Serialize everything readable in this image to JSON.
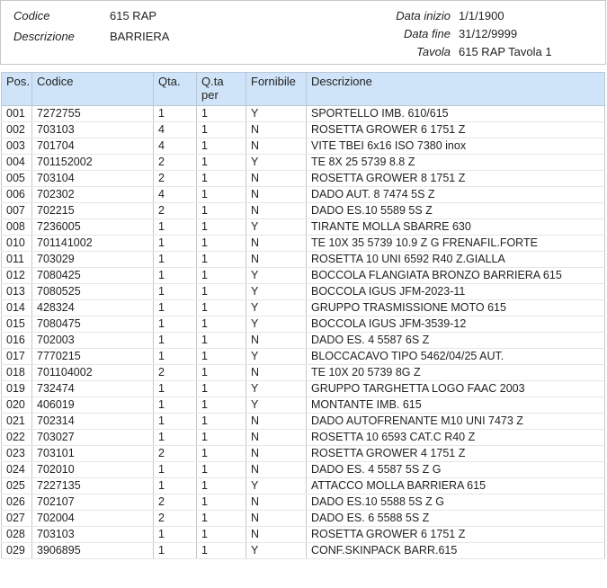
{
  "header": {
    "codice_label": "Codice",
    "codice_value": "615 RAP",
    "descrizione_label": "Descrizione",
    "descrizione_value": "BARRIERA",
    "data_inizio_label": "Data inizio",
    "data_inizio_value": "1/1/1900",
    "data_fine_label": "Data fine",
    "data_fine_value": "31/12/9999",
    "tavola_label": "Tavola",
    "tavola_value": "615 RAP Tavola 1"
  },
  "table": {
    "columns": [
      "Pos.",
      "Codice",
      "Qta.",
      "Q.ta per",
      "Fornibile",
      "Descrizione"
    ],
    "rows": [
      [
        "001",
        "7272755",
        "1",
        "1",
        "Y",
        "SPORTELLO IMB. 610/615"
      ],
      [
        "002",
        "703103",
        "4",
        "1",
        "N",
        "ROSETTA GROWER  6 1751 Z"
      ],
      [
        "003",
        "701704",
        "4",
        "1",
        "N",
        "VITE TBEI 6x16 ISO 7380 inox"
      ],
      [
        "004",
        "701152002",
        "2",
        "1",
        "Y",
        "TE  8X 25 5739 8.8 Z"
      ],
      [
        "005",
        "703104",
        "2",
        "1",
        "N",
        "ROSETTA GROWER  8 1751 Z"
      ],
      [
        "006",
        "702302",
        "4",
        "1",
        "N",
        "DADO AUT. 8 7474 5S Z"
      ],
      [
        "007",
        "702215",
        "2",
        "1",
        "N",
        "DADO ES.10 5589 5S Z"
      ],
      [
        "008",
        "7236005",
        "1",
        "1",
        "Y",
        "TIRANTE MOLLA SBARRE 630"
      ],
      [
        "010",
        "701141002",
        "1",
        "1",
        "N",
        "TE 10X 35 5739 10.9 Z G FRENAFIL.FORTE"
      ],
      [
        "011",
        "703029",
        "1",
        "1",
        "N",
        "ROSETTA  10 UNI 6592 R40 Z.GIALLA"
      ],
      [
        "012",
        "7080425",
        "1",
        "1",
        "Y",
        "BOCCOLA FLANGIATA BRONZO BARRIERA 615"
      ],
      [
        "013",
        "7080525",
        "1",
        "1",
        "Y",
        "BOCCOLA IGUS JFM-2023-11"
      ],
      [
        "014",
        "428324",
        "1",
        "1",
        "Y",
        "GRUPPO TRASMISSIONE MOTO 615"
      ],
      [
        "015",
        "7080475",
        "1",
        "1",
        "Y",
        "BOCCOLA IGUS JFM-3539-12"
      ],
      [
        "016",
        "702003",
        "1",
        "1",
        "N",
        "DADO ES. 4 5587 6S Z"
      ],
      [
        "017",
        "7770215",
        "1",
        "1",
        "Y",
        "BLOCCACAVO TIPO 5462/04/25 AUT."
      ],
      [
        "018",
        "701104002",
        "2",
        "1",
        "N",
        "TE 10X 20 5739 8G Z"
      ],
      [
        "019",
        "732474",
        "1",
        "1",
        "Y",
        "GRUPPO TARGHETTA LOGO FAAC 2003"
      ],
      [
        "020",
        "406019",
        "1",
        "1",
        "Y",
        "MONTANTE IMB. 615"
      ],
      [
        "021",
        "702314",
        "1",
        "1",
        "N",
        "DADO AUTOFRENANTE M10 UNI 7473 Z"
      ],
      [
        "022",
        "703027",
        "1",
        "1",
        "N",
        "ROSETTA 10 6593 CAT.C R40 Z"
      ],
      [
        "023",
        "703101",
        "2",
        "1",
        "N",
        "ROSETTA GROWER  4 1751 Z"
      ],
      [
        "024",
        "702010",
        "1",
        "1",
        "N",
        "DADO ES. 4 5587 5S Z G"
      ],
      [
        "025",
        "7227135",
        "1",
        "1",
        "Y",
        "ATTACCO MOLLA BARRIERA 615"
      ],
      [
        "026",
        "702107",
        "2",
        "1",
        "N",
        "DADO ES.10 5588 5S Z G"
      ],
      [
        "027",
        "702004",
        "2",
        "1",
        "N",
        "DADO ES. 6 5588 5S Z"
      ],
      [
        "028",
        "703103",
        "1",
        "1",
        "N",
        "ROSETTA GROWER  6 1751 Z"
      ],
      [
        "029",
        "3906895",
        "1",
        "1",
        "Y",
        "CONF.SKINPACK BARR.615"
      ]
    ]
  },
  "colors": {
    "header_bg": "#cfe4f8"
  }
}
